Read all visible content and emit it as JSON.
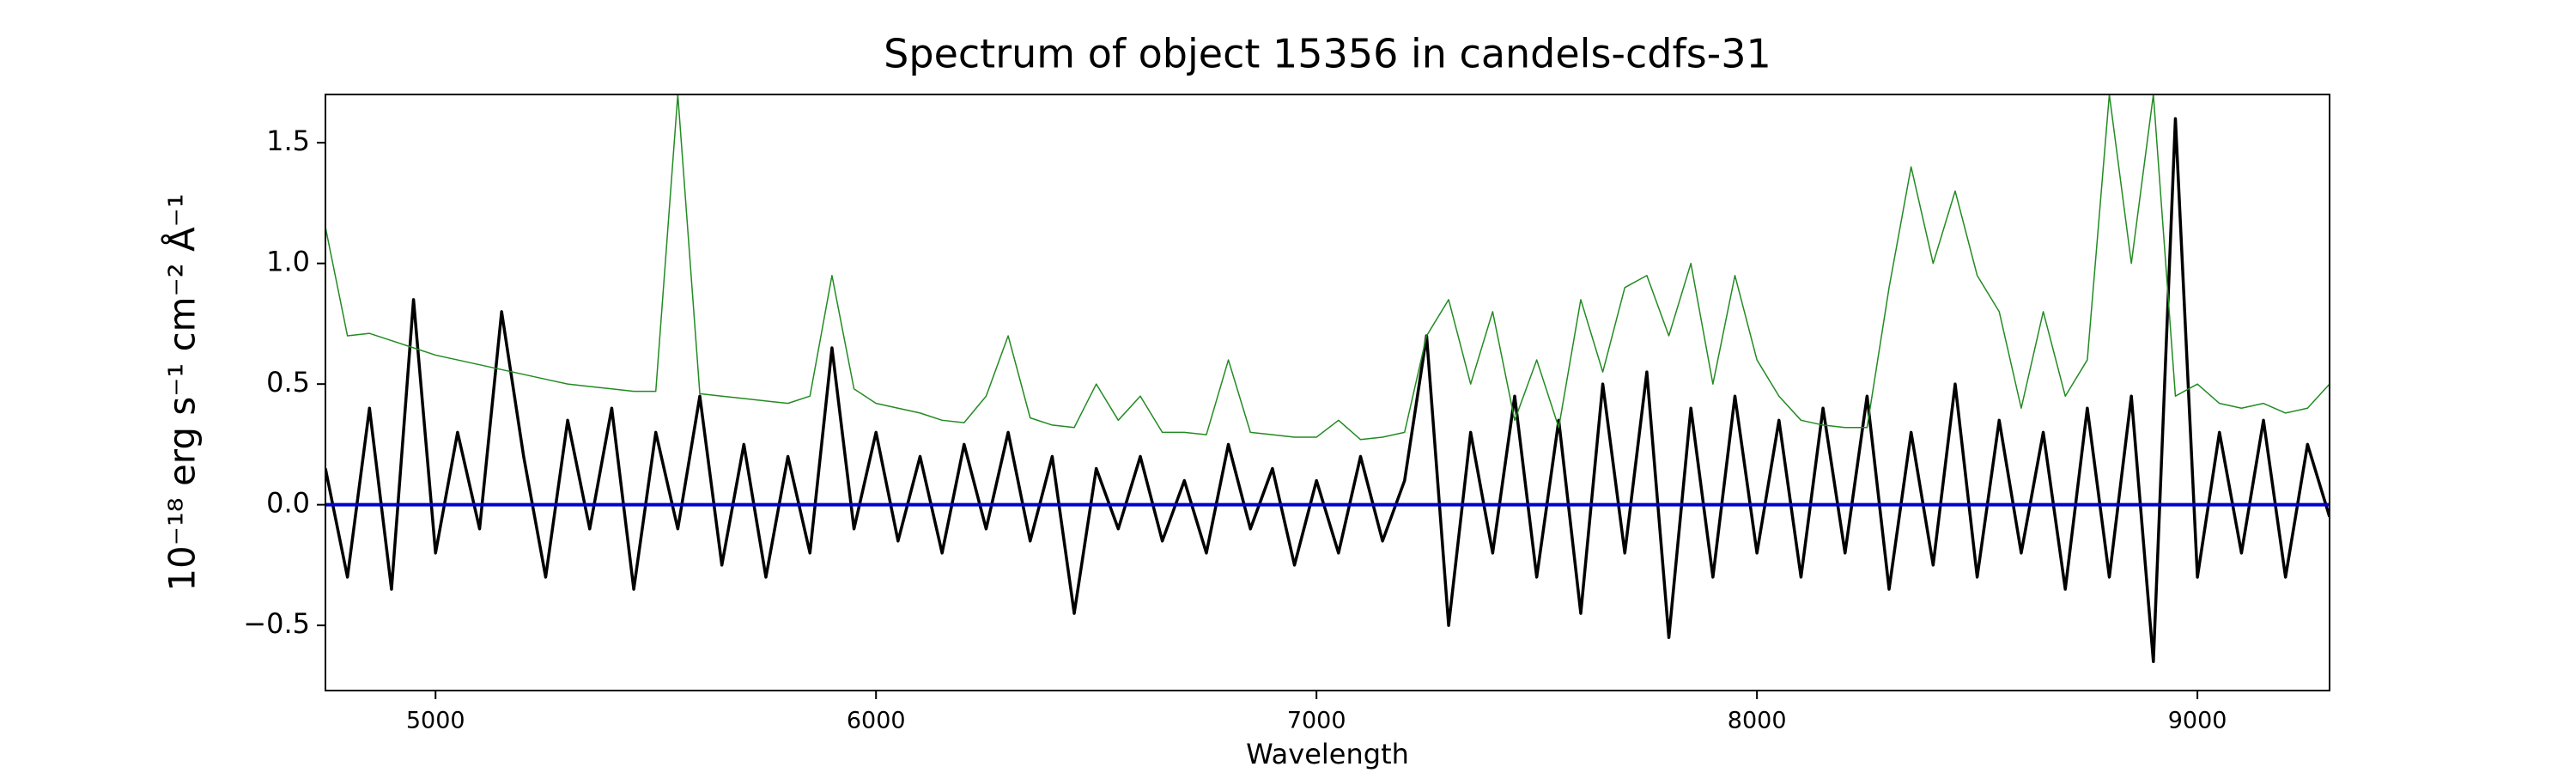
{
  "chart_data": {
    "type": "line",
    "title": "Spectrum of object 15356 in candels-cdfs-31",
    "x_label": "Wavelength",
    "y_label": "10⁻¹⁸ erg s⁻¹ cm⁻² Å⁻¹",
    "x": [
      4750,
      4800,
      4850,
      4900,
      4950,
      5000,
      5050,
      5100,
      5150,
      5200,
      5250,
      5300,
      5350,
      5400,
      5450,
      5500,
      5550,
      5600,
      5650,
      5700,
      5750,
      5800,
      5850,
      5900,
      5950,
      6000,
      6050,
      6100,
      6150,
      6200,
      6250,
      6300,
      6350,
      6400,
      6450,
      6500,
      6550,
      6600,
      6650,
      6700,
      6750,
      6800,
      6850,
      6900,
      6950,
      7000,
      7050,
      7100,
      7150,
      7200,
      7250,
      7300,
      7350,
      7400,
      7450,
      7500,
      7550,
      7600,
      7650,
      7700,
      7750,
      7800,
      7850,
      7900,
      7950,
      8000,
      8050,
      8100,
      8150,
      8200,
      8250,
      8300,
      8350,
      8400,
      8450,
      8500,
      8550,
      8600,
      8650,
      8700,
      8750,
      8800,
      8850,
      8900,
      8950,
      9000,
      9050,
      9100,
      9150,
      9200,
      9250,
      9300
    ],
    "series": [
      {
        "color": "#000000",
        "width": 3.5,
        "values": [
          0.15,
          -0.3,
          0.4,
          -0.35,
          0.85,
          -0.2,
          0.3,
          -0.1,
          0.8,
          0.2,
          -0.3,
          0.35,
          -0.1,
          0.4,
          -0.35,
          0.3,
          -0.1,
          0.45,
          -0.25,
          0.25,
          -0.3,
          0.2,
          -0.2,
          0.65,
          -0.1,
          0.3,
          -0.15,
          0.2,
          -0.2,
          0.25,
          -0.1,
          0.3,
          -0.15,
          0.2,
          -0.45,
          0.15,
          -0.1,
          0.2,
          -0.15,
          0.1,
          -0.2,
          0.25,
          -0.1,
          0.15,
          -0.25,
          0.1,
          -0.2,
          0.2,
          -0.15,
          0.1,
          0.7,
          -0.5,
          0.3,
          -0.2,
          0.45,
          -0.3,
          0.35,
          -0.45,
          0.5,
          -0.2,
          0.55,
          -0.55,
          0.4,
          -0.3,
          0.45,
          -0.2,
          0.35,
          -0.3,
          0.4,
          -0.2,
          0.45,
          -0.35,
          0.3,
          -0.25,
          0.5,
          -0.3,
          0.35,
          -0.2,
          0.3,
          -0.35,
          0.4,
          -0.3,
          0.45,
          -0.65,
          1.6,
          -0.3,
          0.3,
          -0.2,
          0.35,
          -0.3,
          0.25,
          -0.05
        ]
      },
      {
        "color": "#228b22",
        "width": 1.5,
        "values": [
          1.15,
          0.7,
          0.71,
          0.68,
          0.65,
          0.62,
          0.6,
          0.58,
          0.56,
          0.54,
          0.52,
          0.5,
          0.49,
          0.48,
          0.47,
          0.47,
          1.7,
          0.46,
          0.45,
          0.44,
          0.43,
          0.42,
          0.45,
          0.95,
          0.48,
          0.42,
          0.4,
          0.38,
          0.35,
          0.34,
          0.45,
          0.7,
          0.36,
          0.33,
          0.32,
          0.5,
          0.35,
          0.45,
          0.3,
          0.3,
          0.29,
          0.6,
          0.3,
          0.29,
          0.28,
          0.28,
          0.35,
          0.27,
          0.28,
          0.3,
          0.7,
          0.85,
          0.5,
          0.8,
          0.35,
          0.6,
          0.32,
          0.85,
          0.55,
          0.9,
          0.95,
          0.7,
          1.0,
          0.5,
          0.95,
          0.6,
          0.45,
          0.35,
          0.33,
          0.32,
          0.32,
          0.9,
          1.4,
          1.0,
          1.3,
          0.95,
          0.8,
          0.4,
          0.8,
          0.45,
          0.6,
          1.7,
          1.0,
          1.7,
          0.45,
          0.5,
          0.42,
          0.4,
          0.42,
          0.38,
          0.4,
          0.5
        ]
      },
      {
        "color": "#0000cc",
        "width": 4,
        "x": [
          4750,
          9300
        ],
        "values": [
          0,
          0
        ]
      }
    ],
    "xlim": [
      4750,
      9300
    ],
    "ylim": [
      -0.77,
      1.7
    ],
    "xticks": [
      5000,
      6000,
      7000,
      8000,
      9000
    ],
    "yticks": [
      {
        "value": -0.5,
        "label": "−0.5"
      },
      {
        "value": 0,
        "label": "0.0"
      },
      {
        "value": 0.5,
        "label": "0.5"
      },
      {
        "value": 1,
        "label": "1.0"
      },
      {
        "value": 1.5,
        "label": "1.5"
      }
    ],
    "grid": false
  }
}
